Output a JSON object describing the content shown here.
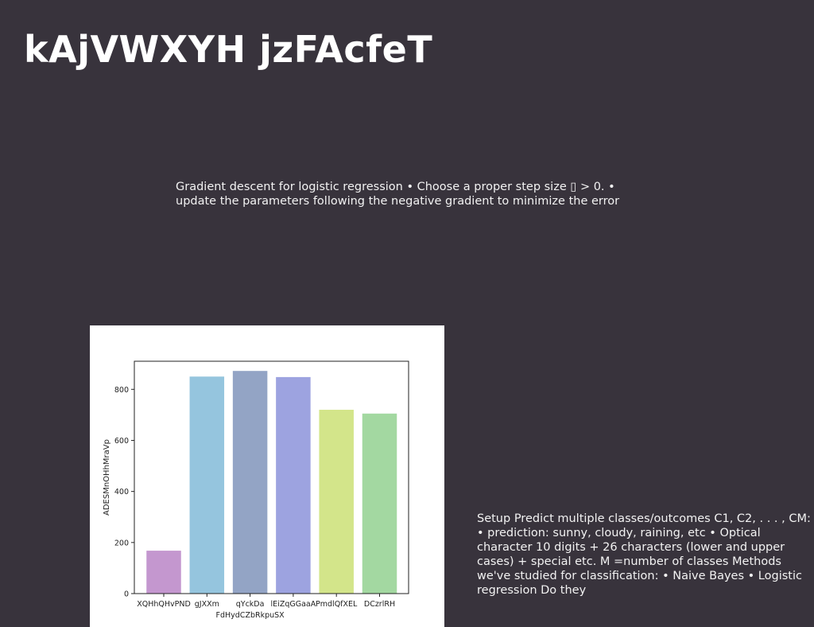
{
  "slide": {
    "title": "kAjVWXYH jzFAcfeT",
    "paragraph_top": "Gradient descent for logistic regression • Choose a proper step size ▯ > 0. • update the parameters following the negative gradient to minimize the error",
    "paragraph_right": "Setup Predict multiple classes/outcomes C1, C2, . . . , CM: • prediction: sunny, cloudy, raining, etc • Optical character 10 digits + 26 characters (lower and upper cases) + special etc. M =number of classes Methods we've studied for classification: • Naive Bayes • Logistic regression Do they"
  },
  "chart_data": {
    "type": "bar",
    "title": "",
    "xlabel": "",
    "ylabel": "ADESMnOHhMraVp",
    "ylim": [
      0,
      910
    ],
    "yticks": [
      0,
      200,
      400,
      600,
      800
    ],
    "categories": [
      {
        "line1": "XQHhQHvPND",
        "line2": ""
      },
      {
        "line1": "gJXXm",
        "line2": ""
      },
      {
        "line1": "qYckDa",
        "line2": "FdHydCZbRkpuSX"
      },
      {
        "line1": "lEiZqGGaaA",
        "line2": ""
      },
      {
        "line1": "PmdlQfXEL",
        "line2": ""
      },
      {
        "line1": "DCzrlRH",
        "line2": ""
      }
    ],
    "values": [
      168,
      850,
      872,
      848,
      720,
      705
    ],
    "colors": [
      "#c497cf",
      "#95c5de",
      "#93a4c5",
      "#9da3e0",
      "#d3e58a",
      "#a3d8a1"
    ],
    "grid": false,
    "legend": "none"
  }
}
